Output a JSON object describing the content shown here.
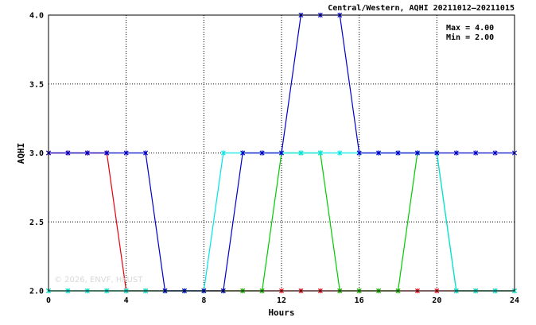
{
  "chart_data": {
    "type": "line",
    "title": "Central/Western, AQHI 20211012–20211015",
    "xlabel": "Hours",
    "ylabel": "AQHI",
    "xlim": [
      0,
      24
    ],
    "ylim": [
      2.0,
      4.0
    ],
    "xticks": [
      0,
      4,
      8,
      12,
      16,
      20,
      24
    ],
    "yticks": [
      2.0,
      2.5,
      3.0,
      3.5,
      4.0
    ],
    "ytick_labels": [
      "2.0",
      "2.5",
      "3.0",
      "3.5",
      "4.0"
    ],
    "grid": true,
    "stats": {
      "max": "Max = 4.00",
      "min": "Min = 2.00"
    },
    "watermark": "© 2026, ENVF, HKUST",
    "x": [
      0,
      1,
      2,
      3,
      4,
      5,
      6,
      7,
      8,
      9,
      10,
      11,
      12,
      13,
      14,
      15,
      16,
      17,
      18,
      19,
      20,
      21,
      22,
      23,
      24
    ],
    "series": [
      {
        "color": "#e8000b",
        "values": [
          3,
          3,
          3,
          3,
          2,
          2,
          2,
          2,
          2,
          2,
          2,
          2,
          2,
          2,
          2,
          2,
          2,
          2,
          2,
          2,
          2,
          2,
          2,
          2,
          2
        ]
      },
      {
        "color": "#00cc00",
        "values": [
          2,
          2,
          2,
          2,
          2,
          2,
          2,
          2,
          2,
          2,
          2,
          2,
          3,
          3,
          3,
          2,
          2,
          2,
          2,
          3,
          3,
          2,
          2,
          2,
          2
        ]
      },
      {
        "color": "#00e5e5",
        "values": [
          2,
          2,
          2,
          2,
          2,
          2,
          2,
          2,
          2,
          3,
          3,
          3,
          3,
          3,
          3,
          3,
          3,
          3,
          3,
          3,
          3,
          2,
          2,
          2,
          2
        ]
      },
      {
        "color": "#0000cc",
        "values": [
          3,
          3,
          3,
          3,
          3,
          3,
          2,
          2,
          2,
          2,
          3,
          3,
          3,
          4,
          4,
          4,
          3,
          3,
          3,
          3,
          3,
          3,
          3,
          3,
          3
        ]
      }
    ]
  }
}
